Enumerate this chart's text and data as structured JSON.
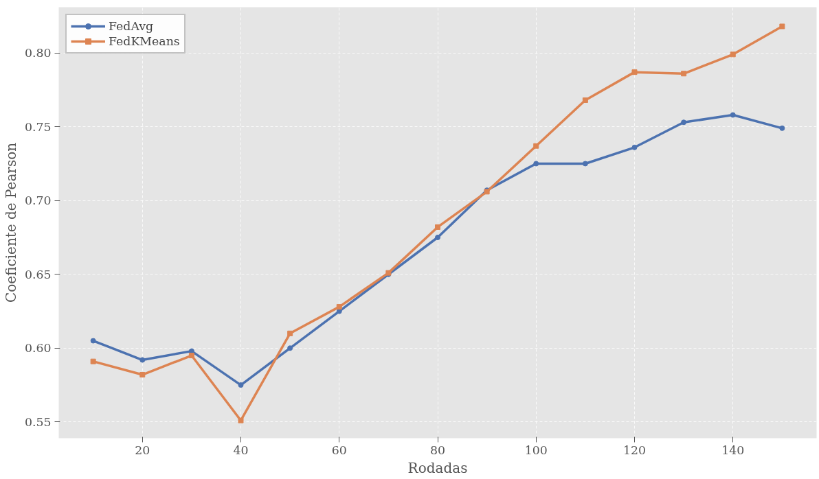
{
  "chart_data": {
    "type": "line",
    "xlabel": "Rodadas",
    "ylabel": "Coeficiente de Pearson",
    "x": [
      10,
      20,
      30,
      40,
      50,
      60,
      70,
      80,
      90,
      100,
      110,
      120,
      130,
      140,
      150
    ],
    "xlim": [
      3,
      157
    ],
    "xticks": [
      20,
      40,
      60,
      80,
      100,
      120,
      140
    ],
    "ylim": [
      0.539,
      0.831
    ],
    "yticks": [
      0.55,
      {
        "value": 0.6,
        "label": "0.60"
      },
      0.65,
      {
        "value": 0.7,
        "label": "0.70"
      },
      0.75,
      {
        "value": 0.8,
        "label": "0.80"
      }
    ],
    "grid": true,
    "legend": "top left",
    "line_style": "solid",
    "series": [
      {
        "name": "FedAvg",
        "color": "#4c72b0",
        "marker": "circle",
        "values": [
          0.605,
          0.592,
          0.598,
          0.575,
          0.6,
          0.625,
          0.65,
          0.675,
          0.707,
          0.725,
          0.725,
          0.736,
          0.753,
          0.758,
          0.749
        ]
      },
      {
        "name": "FedKMeans",
        "color": "#dd8452",
        "marker": "square",
        "values": [
          0.591,
          0.582,
          0.595,
          0.551,
          0.61,
          0.628,
          0.651,
          0.682,
          0.706,
          0.737,
          0.768,
          0.787,
          0.786,
          0.799,
          0.818
        ]
      }
    ]
  }
}
